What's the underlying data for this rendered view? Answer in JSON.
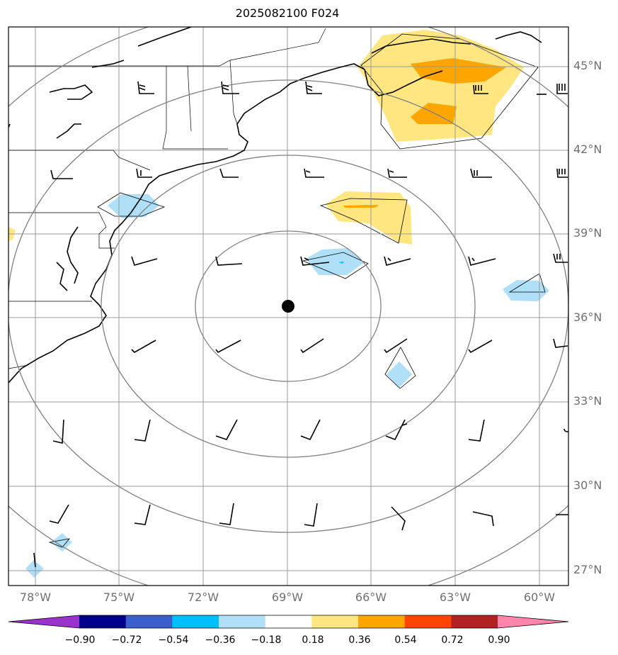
{
  "title": "2025082100 F024",
  "map": {
    "extent": {
      "lon_min": -79,
      "lon_max": -58.7,
      "lat_min": 26.5,
      "lat_max": 46.4
    },
    "lat_ticks": [
      {
        "value": 45,
        "label": "45°N"
      },
      {
        "value": 42,
        "label": "42°N"
      },
      {
        "value": 39,
        "label": "39°N"
      },
      {
        "value": 36,
        "label": "36°N"
      },
      {
        "value": 33,
        "label": "33°N"
      },
      {
        "value": 30,
        "label": "30°N"
      },
      {
        "value": 27,
        "label": "27°N"
      }
    ],
    "lon_ticks": [
      {
        "value": -78,
        "label": "78°W"
      },
      {
        "value": -75,
        "label": "75°W"
      },
      {
        "value": -72,
        "label": "72°W"
      },
      {
        "value": -69,
        "label": "69°W"
      },
      {
        "value": -66,
        "label": "66°W"
      },
      {
        "value": -63,
        "label": "63°W"
      },
      {
        "value": -60,
        "label": "60°W"
      }
    ],
    "center_marker": {
      "lon": -69,
      "lat": 36.4
    },
    "range_rings": 5,
    "colors": {
      "grid": "#9a9a9a",
      "ring": "#808080",
      "coast": "#000000"
    }
  },
  "colorbar": {
    "colors": [
      "#9933cc",
      "#00008b",
      "#3a5fcd",
      "#00bfff",
      "#b0e0f8",
      "#ffffff",
      "#ffe680",
      "#ffa500",
      "#ff4500",
      "#b22222",
      "#ff85aa"
    ],
    "ticks": [
      "−0.90",
      "−0.72",
      "−0.54",
      "−0.36",
      "−0.18",
      "0.18",
      "0.36",
      "0.54",
      "0.72",
      "0.90"
    ]
  }
}
